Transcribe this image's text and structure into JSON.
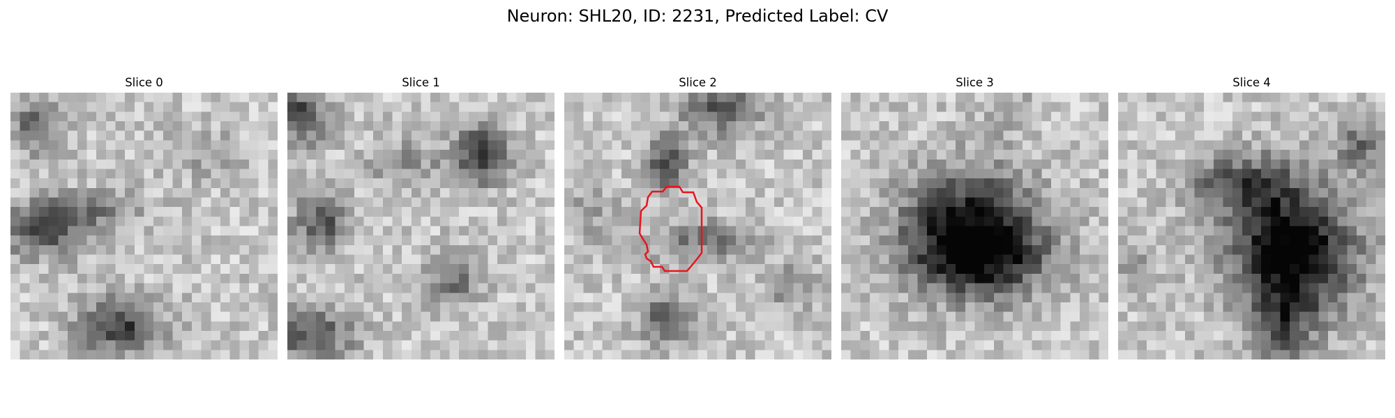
{
  "figure": {
    "title": "Neuron: SHL20, ID: 2231, Predicted Label: CV"
  },
  "panels": [
    {
      "title": "Slice 0",
      "has_contour": false
    },
    {
      "title": "Slice 1",
      "has_contour": false
    },
    {
      "title": "Slice 2",
      "has_contour": true
    },
    {
      "title": "Slice 3",
      "has_contour": false
    },
    {
      "title": "Slice 4",
      "has_contour": false
    }
  ],
  "colors": {
    "contour": "#e8141c",
    "colormap": "gray_r-like grayscale"
  }
}
